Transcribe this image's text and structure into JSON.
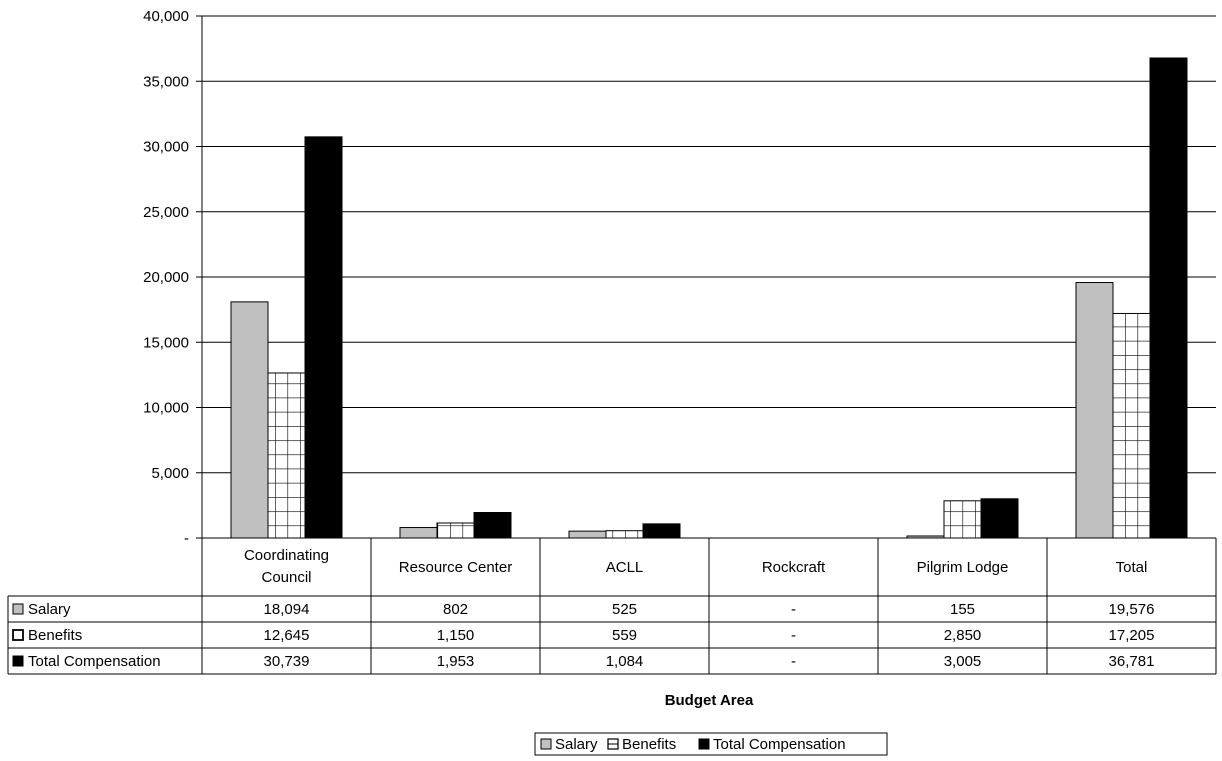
{
  "chart_data": {
    "type": "bar",
    "categories": [
      "Coordinating Council",
      "Resource Center",
      "ACLL",
      "Rockcraft",
      "Pilgrim Lodge",
      "Total"
    ],
    "category_lines": [
      [
        "Coordinating",
        "Council"
      ],
      [
        "Resource Center"
      ],
      [
        "ACLL"
      ],
      [
        "Rockcraft"
      ],
      [
        "Pilgrim Lodge"
      ],
      [
        "Total"
      ]
    ],
    "series": [
      {
        "name": "Salary",
        "values": [
          18094,
          802,
          525,
          0,
          155,
          19576
        ],
        "labels": [
          "18,094",
          "802",
          "525",
          "-",
          "155",
          "19,576"
        ],
        "color": "#c0c0c0",
        "pattern": "solid"
      },
      {
        "name": "Benefits",
        "values": [
          12645,
          1150,
          559,
          0,
          2850,
          17205
        ],
        "labels": [
          "12,645",
          "1,150",
          "559",
          "-",
          "2,850",
          "17,205"
        ],
        "color": "#ffffff",
        "pattern": "grid"
      },
      {
        "name": "Total Compensation",
        "values": [
          30739,
          1953,
          1084,
          0,
          3005,
          36781
        ],
        "labels": [
          "30,739",
          "1,953",
          "1,084",
          "-",
          "3,005",
          "36,781"
        ],
        "color": "#000000",
        "pattern": "solid"
      }
    ],
    "y_ticks": [
      0,
      5000,
      10000,
      15000,
      20000,
      25000,
      30000,
      35000,
      40000
    ],
    "y_tick_labels": [
      "-",
      "5,000",
      "10,000",
      "15,000",
      "20,000",
      "25,000",
      "30,000",
      "35,000",
      "40,000"
    ],
    "ylim": [
      0,
      40000
    ],
    "xlabel": "Budget Area",
    "ylabel": "",
    "title": "",
    "grid": true,
    "legend_position": "bottom-center",
    "data_table": true
  }
}
